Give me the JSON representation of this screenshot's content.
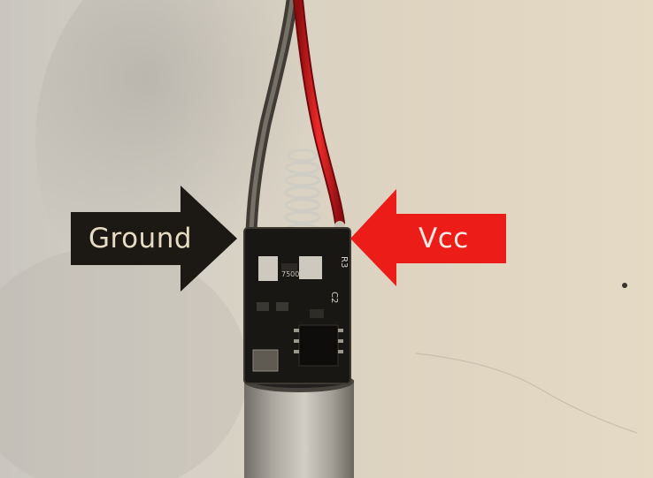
{
  "annotations": {
    "ground": {
      "text": "Ground",
      "arrow_color": "#1c1914",
      "text_color": "#e6dcc3",
      "direction": "right"
    },
    "vcc": {
      "text": "Vcc",
      "arrow_color": "#ec1c19",
      "text_color": "#ffe8e4",
      "direction": "left"
    }
  },
  "board_markings": {
    "chip": "7500",
    "r3": "R3",
    "c2": "C2"
  },
  "colors": {
    "wall": "#d8d2c6",
    "pcb": "#181714",
    "red_wire": "#d8141a",
    "ground_wire": "#5a564e",
    "spring": "#bfbcb3",
    "metal_cylinder": "#a9a59c"
  }
}
